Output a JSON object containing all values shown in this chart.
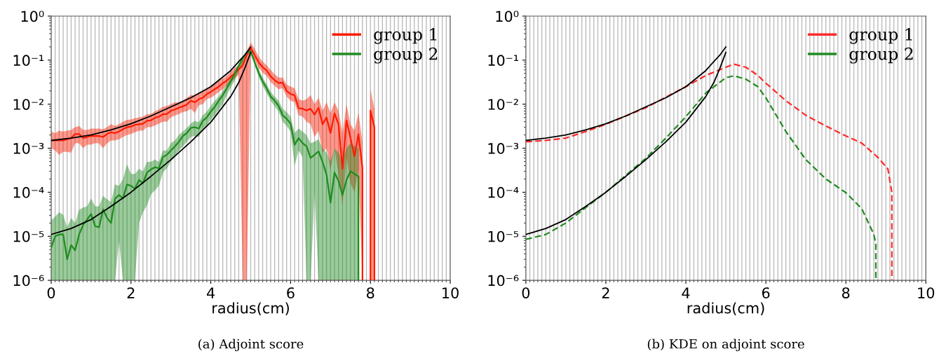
{
  "chart_data": [
    {
      "type": "line",
      "xlabel": "radius(cm)",
      "annotations": [
        "(a) Adjoint score"
      ],
      "log": true,
      "grid": "x",
      "legend": "top right",
      "xlim": [
        0,
        10
      ],
      "xticks": [
        0,
        2,
        4,
        6,
        8,
        10
      ],
      "ylim": [
        1e-06,
        1
      ],
      "yticks": [
        {
          "value": 1e-06,
          "label": "10⁻⁶"
        },
        {
          "value": 1e-05,
          "label": "10⁻⁵"
        },
        {
          "value": 0.0001,
          "label": "10⁻⁴"
        },
        {
          "value": 0.001,
          "label": "10⁻³"
        },
        {
          "value": 0.01,
          "label": "10⁻²"
        },
        {
          "value": 0.1,
          "label": "10⁻¹"
        },
        {
          "value": 1,
          "label": "10⁰"
        }
      ],
      "series": [
        {
          "name": "group 1",
          "color": "#ff1a00",
          "x": [
            0,
            0.1,
            0.2,
            0.3,
            0.4,
            0.5,
            0.6,
            0.7,
            0.8,
            0.9,
            1.0,
            1.1,
            1.2,
            1.3,
            1.4,
            1.5,
            1.6,
            1.7,
            1.8,
            1.9,
            2.0,
            2.1,
            2.2,
            2.3,
            2.4,
            2.5,
            2.6,
            2.7,
            2.8,
            2.9,
            3.0,
            3.1,
            3.2,
            3.3,
            3.4,
            3.5,
            3.6,
            3.7,
            3.8,
            3.9,
            4.0,
            4.1,
            4.2,
            4.3,
            4.4,
            4.5,
            4.6,
            4.7,
            4.8,
            4.9,
            5.0,
            5.1,
            5.2,
            5.3,
            5.4,
            5.5,
            5.6,
            5.7,
            5.8,
            5.9,
            6.0,
            6.1,
            6.2,
            6.3,
            6.4,
            6.5,
            6.6,
            6.7,
            6.8,
            6.9,
            7.0,
            7.1,
            7.2,
            7.3,
            7.4,
            7.5,
            7.6,
            7.7,
            7.8,
            7.8,
            7.9,
            8.0,
            8.0,
            8.1,
            8.1
          ],
          "values": [
            0.0015,
            0.0015,
            0.0015,
            0.0015,
            0.0016,
            0.0017,
            0.0021,
            0.0021,
            0.0017,
            0.0018,
            0.0019,
            0.0019,
            0.0019,
            0.0018,
            0.0021,
            0.0023,
            0.0022,
            0.0024,
            0.0027,
            0.003,
            0.0031,
            0.0034,
            0.0035,
            0.0036,
            0.0042,
            0.0043,
            0.0049,
            0.0052,
            0.0059,
            0.006,
            0.0071,
            0.0076,
            0.0083,
            0.0089,
            0.0098,
            0.012,
            0.011,
            0.013,
            0.014,
            0.017,
            0.019,
            0.022,
            0.025,
            0.03,
            0.034,
            0.042,
            0.05,
            0.062,
            0.076,
            0.13,
            0.19,
            0.13,
            0.089,
            0.069,
            0.058,
            0.043,
            0.035,
            0.03,
            0.031,
            0.02,
            0.017,
            0.016,
            0.0081,
            0.0079,
            0.0072,
            0.0079,
            0.0058,
            0.0083,
            0.0035,
            0.005,
            0.0022,
            0.0062,
            0.0035,
            0.00034,
            0.0043,
            0.0017,
            0.00066,
            0.0021,
            0.00035,
            1e-06,
            null,
            1e-06,
            0.0072,
            0.003,
            1e-06
          ],
          "upper": [
            0.0024,
            0.0022,
            0.0025,
            0.0024,
            0.0025,
            0.0026,
            0.003,
            0.0032,
            0.0026,
            0.0026,
            0.0028,
            0.0028,
            0.0028,
            0.0027,
            0.003,
            0.0035,
            0.0032,
            0.0035,
            0.004,
            0.0044,
            0.0045,
            0.0048,
            0.005,
            0.0052,
            0.0059,
            0.006,
            0.0069,
            0.0076,
            0.0087,
            0.0091,
            0.01,
            0.011,
            0.011,
            0.012,
            0.014,
            0.016,
            0.016,
            0.018,
            0.02,
            0.023,
            0.026,
            0.03,
            0.034,
            0.038,
            0.044,
            0.055,
            0.066,
            0.079,
            0.1,
            0.16,
            0.25,
            0.18,
            0.12,
            0.093,
            0.076,
            0.06,
            0.048,
            0.04,
            0.04,
            0.028,
            0.025,
            0.023,
            0.013,
            0.012,
            0.013,
            0.016,
            0.01,
            0.014,
            0.0071,
            0.011,
            0.0063,
            0.011,
            0.0071,
            0.0022,
            0.01,
            0.0035,
            0.0025,
            0.0063,
            0.0014,
            0.0014,
            null,
            0.022,
            0.022,
            0.0079,
            0.0079
          ],
          "lower": [
            0.001,
            0.00089,
            0.00071,
            0.00083,
            0.00083,
            0.00079,
            0.0013,
            0.0013,
            0.001,
            0.0012,
            0.0012,
            0.0013,
            0.0013,
            0.001,
            0.0013,
            0.0015,
            0.0015,
            0.0016,
            0.0018,
            0.002,
            0.0021,
            0.0023,
            0.0025,
            0.0025,
            0.003,
            0.003,
            0.0033,
            0.0036,
            0.004,
            0.004,
            0.005,
            0.0055,
            0.006,
            0.0066,
            0.0069,
            0.0079,
            0.0063,
            0.0095,
            0.01,
            0.013,
            0.014,
            0.016,
            0.019,
            0.022,
            0.026,
            0.032,
            0.038,
            0.047,
            1e-06,
            1e-06,
            0.15,
            0.1,
            0.068,
            0.052,
            0.044,
            0.032,
            0.026,
            0.022,
            0.023,
            0.015,
            0.012,
            0.011,
            0.0056,
            0.0052,
            0.004,
            0.0035,
            0.0018,
            0.0025,
            0.00079,
            0.001,
            0.00032,
            0.001,
            0.00025,
            5e-05,
            0.00063,
            0.00016,
            0.0001,
            0.00032,
            1e-06,
            1e-06,
            null,
            1e-06,
            1e-06,
            1e-06,
            1e-06
          ]
        },
        {
          "name": "group 2",
          "color": "#1e8c1e",
          "x": [
            0,
            0.1,
            0.2,
            0.3,
            0.4,
            0.5,
            0.6,
            0.7,
            0.8,
            0.9,
            1.0,
            1.1,
            1.2,
            1.3,
            1.4,
            1.5,
            1.6,
            1.7,
            1.8,
            1.9,
            2.0,
            2.1,
            2.2,
            2.3,
            2.4,
            2.5,
            2.6,
            2.7,
            2.8,
            2.9,
            3.0,
            3.1,
            3.2,
            3.3,
            3.4,
            3.5,
            3.6,
            3.7,
            3.8,
            3.9,
            4.0,
            4.1,
            4.2,
            4.3,
            4.4,
            4.5,
            4.6,
            4.7,
            4.8,
            4.9,
            5.0,
            5.1,
            5.2,
            5.3,
            5.4,
            5.5,
            5.6,
            5.7,
            5.8,
            5.9,
            6.0,
            6.1,
            6.2,
            6.3,
            6.4,
            6.5,
            6.6,
            6.7,
            6.8,
            6.9,
            7.0,
            7.1,
            7.2,
            7.3,
            7.4,
            7.5,
            7.6,
            7.7,
            7.7
          ],
          "values": [
            5.5e-06,
            1e-05,
            1.1e-05,
            1.1e-05,
            3e-06,
            6.3e-06,
            4.8e-06,
            1.1e-05,
            1.8e-05,
            2.4e-05,
            3.2e-05,
            1.7e-05,
            1.6e-05,
            4.1e-05,
            2.6e-05,
            2e-05,
            7.1e-05,
            8.7e-05,
            7.2e-05,
            0.00015,
            0.00014,
            0.00012,
            0.00019,
            0.00016,
            0.00028,
            0.00033,
            0.00037,
            0.00035,
            0.00063,
            0.00071,
            0.00089,
            0.0011,
            0.0014,
            0.0019,
            0.0022,
            0.0029,
            0.003,
            0.0028,
            0.0042,
            0.005,
            0.0068,
            0.0087,
            0.012,
            0.016,
            0.023,
            0.033,
            0.048,
            0.074,
            0.11,
            0.15,
            0.16,
            0.089,
            0.051,
            0.033,
            0.023,
            0.015,
            0.012,
            0.0091,
            0.0056,
            0.0047,
            0.0036,
            0.0012,
            0.0017,
            0.0013,
            0.0011,
            0.0006,
            0.00071,
            0.00085,
            0.00049,
            0.00025,
            5.8e-05,
            0.00028,
            0.00018,
            8.7e-05,
            0.00019,
            0.0003,
            0.00026,
            0.00023,
            1e-06
          ],
          "upper": [
            2.3e-05,
            2.8e-05,
            3.5e-05,
            3.1e-05,
            1.6e-05,
            2.6e-05,
            2e-05,
            4e-05,
            4.5e-05,
            4.8e-05,
            7.2e-05,
            4.8e-05,
            4.8e-05,
            8.3e-05,
            6.9e-05,
            6e-05,
            0.00015,
            0.00014,
            0.0002,
            0.00043,
            0.00026,
            0.00026,
            0.00034,
            0.0003,
            0.00049,
            0.00049,
            0.00055,
            0.00049,
            0.00089,
            0.00089,
            0.0013,
            0.0015,
            0.002,
            0.0024,
            0.0029,
            0.0036,
            0.0042,
            0.0039,
            0.0056,
            0.0068,
            0.0091,
            0.012,
            0.015,
            0.02,
            0.028,
            0.04,
            0.058,
            0.083,
            0.12,
            0.16,
            0.19,
            0.1,
            0.063,
            0.04,
            0.028,
            0.019,
            0.015,
            0.012,
            0.0079,
            0.0066,
            0.0052,
            0.0022,
            0.0028,
            0.0024,
            0.002,
            0.0013,
            0.0014,
            0.0016,
            0.001,
            0.00079,
            0.0005,
            0.001,
            0.00079,
            0.0005,
            0.001,
            0.0013,
            0.0011,
            0.001,
            0.001
          ],
          "lower": [
            1e-06,
            1e-06,
            1e-06,
            1e-06,
            1e-06,
            1e-06,
            1e-06,
            1e-06,
            1e-06,
            1e-06,
            1e-06,
            1e-06,
            1e-06,
            1e-06,
            1e-06,
            1e-06,
            1e-06,
            7.9e-06,
            1e-06,
            1e-06,
            1e-06,
            1e-06,
            2e-05,
            3.5e-05,
            5e-05,
            8.9e-05,
            0.00011,
            0.00014,
            0.00028,
            0.00035,
            0.0005,
            0.00063,
            0.00089,
            0.0011,
            0.0014,
            0.0018,
            0.0019,
            0.0018,
            0.0028,
            0.0033,
            0.0045,
            0.0056,
            0.0076,
            0.01,
            0.016,
            0.024,
            0.035,
            0.056,
            0.085,
            0.13,
            0.14,
            0.076,
            0.042,
            0.026,
            0.018,
            0.012,
            0.0089,
            0.0069,
            0.004,
            0.0032,
            0.0024,
            0.0004,
            0.00089,
            0.00063,
            1e-06,
            1e-06,
            0.0001,
            1e-06,
            1e-06,
            1e-06,
            1e-06,
            1e-06,
            1e-06,
            1e-06,
            1e-06,
            1e-06,
            1e-06,
            1e-06,
            1e-06
          ]
        },
        {
          "color": "#000000",
          "x": [
            0,
            0.5,
            1,
            1.5,
            2,
            2.5,
            3,
            3.5,
            4,
            4.5,
            4.7,
            4.85,
            5.0
          ],
          "values": [
            0.0015,
            0.0017,
            0.002,
            0.0026,
            0.0036,
            0.0054,
            0.0087,
            0.014,
            0.025,
            0.058,
            0.093,
            0.13,
            0.2
          ]
        },
        {
          "color": "#000000",
          "x": [
            0,
            0.5,
            1,
            1.5,
            2,
            2.5,
            3,
            3.5,
            4,
            4.5,
            4.7,
            4.85,
            5.0
          ],
          "values": [
            1.1e-05,
            1.5e-05,
            2.4e-05,
            4.8e-05,
            0.0001,
            0.00023,
            0.00055,
            0.0014,
            0.0039,
            0.015,
            0.031,
            0.065,
            0.15
          ]
        }
      ]
    },
    {
      "type": "line",
      "xlabel": "radius(cm)",
      "annotations": [
        "(b) KDE on adjoint score"
      ],
      "log": true,
      "grid": "x",
      "legend": "top right",
      "xlim": [
        0,
        10
      ],
      "xticks": [
        0,
        2,
        4,
        6,
        8,
        10
      ],
      "ylim": [
        1e-06,
        1
      ],
      "yticks": [
        {
          "value": 1e-06,
          "label": "10⁻⁶"
        },
        {
          "value": 1e-05,
          "label": "10⁻⁵"
        },
        {
          "value": 0.0001,
          "label": "10⁻⁴"
        },
        {
          "value": 0.001,
          "label": "10⁻³"
        },
        {
          "value": 0.01,
          "label": "10⁻²"
        },
        {
          "value": 0.1,
          "label": "10⁻¹"
        },
        {
          "value": 1,
          "label": "10⁰"
        }
      ],
      "series": [
        {
          "name": "group 1",
          "color": "#ff2a2a",
          "line_style": "dashed",
          "x": [
            0,
            0.5,
            1,
            1.5,
            2,
            3,
            4,
            4.5,
            5,
            5.2,
            5.5,
            5.8,
            6,
            6.5,
            7,
            7.5,
            8,
            8.4,
            8.8,
            9.05,
            9.15,
            9.15
          ],
          "values": [
            0.0014,
            0.0015,
            0.0017,
            0.0024,
            0.0035,
            0.0083,
            0.025,
            0.045,
            0.069,
            0.081,
            0.069,
            0.045,
            0.03,
            0.012,
            0.0056,
            0.0032,
            0.0019,
            0.0013,
            0.00062,
            0.00034,
            0.0001,
            1e-06
          ]
        },
        {
          "name": "group 2",
          "color": "#228b22",
          "line_style": "dashed",
          "x": [
            0,
            0.5,
            1,
            1.5,
            2,
            3,
            3.5,
            4,
            4.5,
            5,
            5.2,
            5.5,
            5.8,
            6,
            6.5,
            7,
            7.5,
            8,
            8.4,
            8.7,
            8.75,
            8.75
          ],
          "values": [
            8.5e-06,
            1.1e-05,
            2e-05,
            4.5e-05,
            0.0001,
            0.00059,
            0.0017,
            0.0052,
            0.018,
            0.04,
            0.044,
            0.037,
            0.025,
            0.014,
            0.0024,
            0.00055,
            0.0002,
            9.8e-05,
            4.2e-05,
            1.1e-05,
            6.6e-06,
            1e-06
          ]
        },
        {
          "color": "#000000",
          "x": [
            0,
            0.5,
            1,
            1.5,
            2,
            2.5,
            3,
            3.5,
            4,
            4.5,
            4.7,
            4.85,
            5.0
          ],
          "values": [
            0.0015,
            0.0017,
            0.002,
            0.0026,
            0.0036,
            0.0054,
            0.0087,
            0.014,
            0.025,
            0.058,
            0.093,
            0.13,
            0.2
          ]
        },
        {
          "color": "#000000",
          "x": [
            0,
            0.5,
            1,
            1.5,
            2,
            2.5,
            3,
            3.5,
            4,
            4.5,
            4.7,
            4.85,
            5.0
          ],
          "values": [
            1.1e-05,
            1.5e-05,
            2.4e-05,
            4.8e-05,
            0.0001,
            0.00023,
            0.00055,
            0.0014,
            0.0039,
            0.015,
            0.031,
            0.065,
            0.15
          ]
        }
      ]
    }
  ]
}
